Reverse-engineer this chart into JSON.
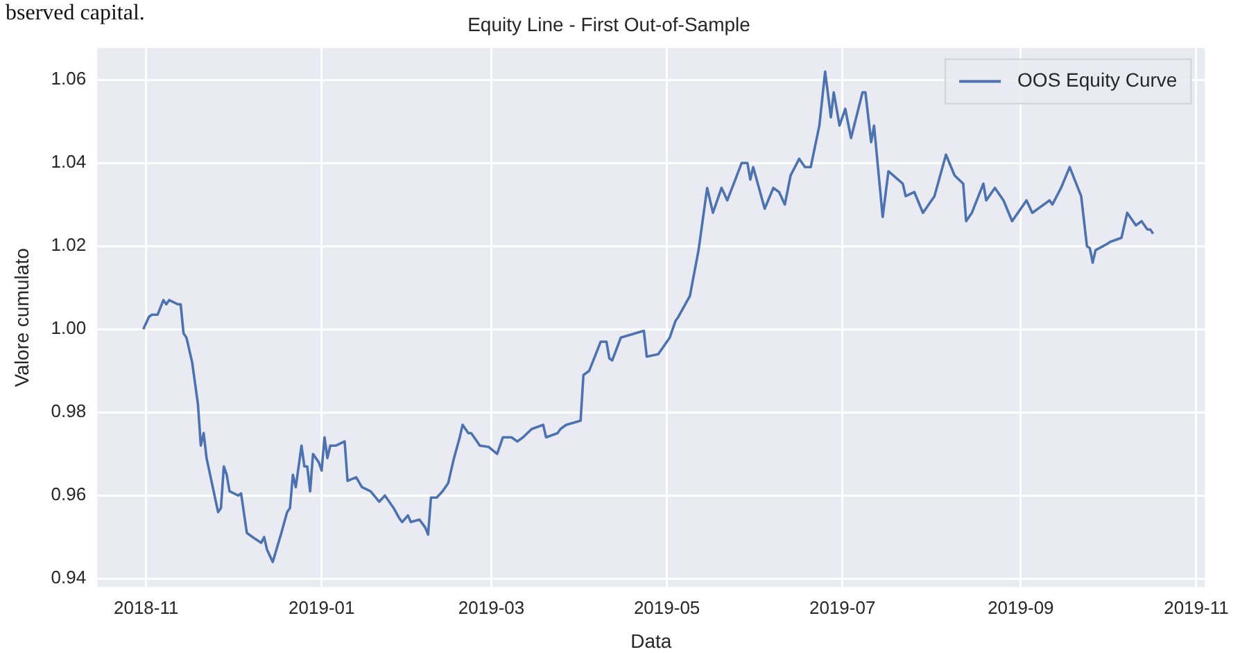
{
  "chart_data": {
    "type": "line",
    "title": "Equity Line - First Out-of-Sample",
    "xlabel": "Data",
    "ylabel": "Valore cumulato",
    "annotations": [
      "bserved capital."
    ],
    "x": [
      "2018-10-31",
      "2018-11-02",
      "2018-11-03",
      "2018-11-05",
      "2018-11-07",
      "2018-11-08",
      "2018-11-09",
      "2018-11-12",
      "2018-11-13",
      "2018-11-14",
      "2018-11-15",
      "2018-11-17",
      "2018-11-19",
      "2018-11-20",
      "2018-11-21",
      "2018-11-22",
      "2018-11-26",
      "2018-11-27",
      "2018-11-28",
      "2018-11-29",
      "2018-11-30",
      "2018-12-03",
      "2018-12-04",
      "2018-12-06",
      "2018-12-08",
      "2018-12-11",
      "2018-12-12",
      "2018-12-13",
      "2018-12-15",
      "2018-12-18",
      "2018-12-20",
      "2018-12-21",
      "2018-12-22",
      "2018-12-23",
      "2018-12-25",
      "2018-12-26",
      "2018-12-27",
      "2018-12-28",
      "2018-12-29",
      "2018-12-31",
      "2019-01-01",
      "2019-01-02",
      "2019-01-03",
      "2019-01-04",
      "2019-01-06",
      "2019-01-09",
      "2019-01-10",
      "2019-01-13",
      "2019-01-15",
      "2019-01-18",
      "2019-01-21",
      "2019-01-23",
      "2019-01-26",
      "2019-01-28",
      "2019-01-29",
      "2019-01-31",
      "2019-02-01",
      "2019-02-04",
      "2019-02-06",
      "2019-02-07",
      "2019-02-08",
      "2019-02-10",
      "2019-02-12",
      "2019-02-14",
      "2019-02-16",
      "2019-02-18",
      "2019-02-19",
      "2019-02-21",
      "2019-02-22",
      "2019-02-25",
      "2019-02-28",
      "2019-03-03",
      "2019-03-05",
      "2019-03-08",
      "2019-03-10",
      "2019-03-12",
      "2019-03-15",
      "2019-03-19",
      "2019-03-20",
      "2019-03-24",
      "2019-03-25",
      "2019-03-27",
      "2019-04-01",
      "2019-04-02",
      "2019-04-04",
      "2019-04-08",
      "2019-04-10",
      "2019-04-11",
      "2019-04-12",
      "2019-04-15",
      "2019-04-23",
      "2019-04-24",
      "2019-04-28",
      "2019-05-02",
      "2019-05-04",
      "2019-05-05",
      "2019-05-09",
      "2019-05-12",
      "2019-05-15",
      "2019-05-17",
      "2019-05-20",
      "2019-05-22",
      "2019-05-27",
      "2019-05-29",
      "2019-05-30",
      "2019-05-31",
      "2019-06-04",
      "2019-06-07",
      "2019-06-09",
      "2019-06-11",
      "2019-06-13",
      "2019-06-16",
      "2019-06-18",
      "2019-06-20",
      "2019-06-23",
      "2019-06-25",
      "2019-06-27",
      "2019-06-28",
      "2019-06-30",
      "2019-07-02",
      "2019-07-04",
      "2019-07-08",
      "2019-07-09",
      "2019-07-11",
      "2019-07-12",
      "2019-07-15",
      "2019-07-17",
      "2019-07-22",
      "2019-07-23",
      "2019-07-26",
      "2019-07-29",
      "2019-08-01",
      "2019-08-02",
      "2019-08-06",
      "2019-08-09",
      "2019-08-12",
      "2019-08-13",
      "2019-08-15",
      "2019-08-19",
      "2019-08-20",
      "2019-08-23",
      "2019-08-26",
      "2019-08-29",
      "2019-09-03",
      "2019-09-05",
      "2019-09-09",
      "2019-09-11",
      "2019-09-12",
      "2019-09-15",
      "2019-09-18",
      "2019-09-22",
      "2019-09-24",
      "2019-09-25",
      "2019-09-26",
      "2019-09-27",
      "2019-10-01",
      "2019-10-02",
      "2019-10-06",
      "2019-10-08",
      "2019-10-11",
      "2019-10-13",
      "2019-10-15",
      "2019-10-16",
      "2019-10-17"
    ],
    "series": [
      {
        "name": "OOS Equity Curve",
        "color": "#4c72b0",
        "values": [
          1.0,
          1.003,
          1.0035,
          1.0035,
          1.007,
          1.006,
          1.007,
          1.006,
          1.006,
          0.999,
          0.998,
          0.992,
          0.982,
          0.972,
          0.975,
          0.969,
          0.956,
          0.957,
          0.967,
          0.965,
          0.961,
          0.96,
          0.9605,
          0.951,
          0.95,
          0.9486,
          0.95,
          0.947,
          0.944,
          0.951,
          0.956,
          0.957,
          0.965,
          0.962,
          0.972,
          0.967,
          0.967,
          0.961,
          0.97,
          0.968,
          0.966,
          0.974,
          0.969,
          0.972,
          0.972,
          0.973,
          0.9635,
          0.9644,
          0.962,
          0.961,
          0.9585,
          0.96,
          0.957,
          0.9545,
          0.9536,
          0.9552,
          0.9536,
          0.9542,
          0.9523,
          0.9506,
          0.9595,
          0.9595,
          0.961,
          0.963,
          0.969,
          0.974,
          0.977,
          0.975,
          0.975,
          0.972,
          0.9717,
          0.97,
          0.974,
          0.974,
          0.973,
          0.974,
          0.976,
          0.977,
          0.974,
          0.975,
          0.976,
          0.977,
          0.978,
          0.989,
          0.99,
          0.997,
          0.997,
          0.993,
          0.9925,
          0.998,
          0.9996,
          0.9934,
          0.994,
          0.998,
          1.002,
          1.003,
          1.008,
          1.019,
          1.034,
          1.028,
          1.034,
          1.031,
          1.04,
          1.04,
          1.036,
          1.039,
          1.029,
          1.034,
          1.033,
          1.03,
          1.037,
          1.041,
          1.039,
          1.039,
          1.049,
          1.062,
          1.051,
          1.057,
          1.049,
          1.053,
          1.046,
          1.057,
          1.057,
          1.045,
          1.049,
          1.027,
          1.038,
          1.035,
          1.032,
          1.033,
          1.028,
          1.031,
          1.032,
          1.042,
          1.037,
          1.035,
          1.026,
          1.028,
          1.035,
          1.031,
          1.034,
          1.031,
          1.026,
          1.031,
          1.028,
          1.03,
          1.031,
          1.03,
          1.034,
          1.039,
          1.032,
          1.02,
          1.0195,
          1.016,
          1.019,
          1.0205,
          1.021,
          1.022,
          1.028,
          1.025,
          1.026,
          1.024,
          1.024,
          1.023
        ]
      }
    ],
    "xlim": [
      "2018-10-15",
      "2019-11-04"
    ],
    "xticks": [
      "2018-11",
      "2019-01",
      "2019-03",
      "2019-05",
      "2019-07",
      "2019-09",
      "2019-11"
    ],
    "ylim": [
      0.938,
      1.0676
    ],
    "yticks": [
      0.94,
      0.96,
      0.98,
      {
        "value": 1,
        "label": "1.00"
      },
      1.02,
      1.04,
      1.06
    ],
    "grid": true,
    "legend": "top right",
    "marker": "none",
    "line_style": "solid"
  }
}
